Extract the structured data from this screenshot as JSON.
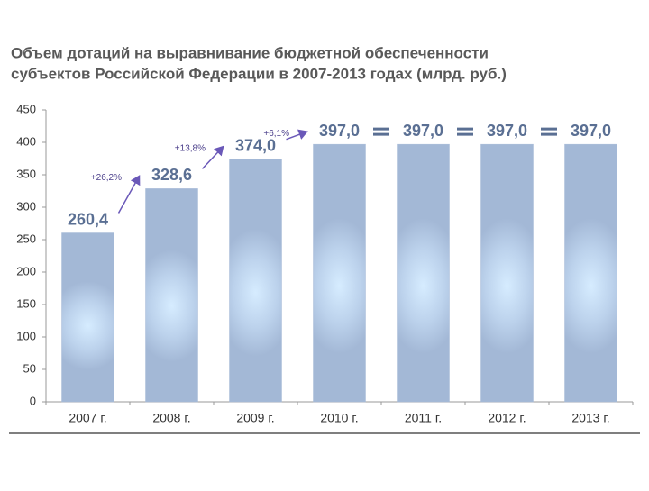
{
  "chart_data": {
    "type": "bar",
    "title": [
      "Объем дотаций на выравнивание бюджетной обеспеченности",
      "субъектов Российской Федерации в 2007-2013 годах (млрд. руб.)"
    ],
    "categories": [
      "2007 г.",
      "2008 г.",
      "2009 г.",
      "2010 г.",
      "2011 г.",
      "2012 г.",
      "2013 г."
    ],
    "values": [
      260.4,
      328.6,
      374.0,
      397.0,
      397.0,
      397.0,
      397.0
    ],
    "value_labels": [
      "260,4",
      "328,6",
      "374,0",
      "397,0",
      "397,0",
      "397,0",
      "397,0"
    ],
    "color": "#a9bcd8",
    "ylim": [
      0,
      450
    ],
    "yticks": [
      0,
      50,
      100,
      150,
      200,
      250,
      300,
      350,
      400,
      450
    ],
    "annotations": [
      "+26,2%",
      "+13,8%",
      "+6,1%"
    ]
  }
}
